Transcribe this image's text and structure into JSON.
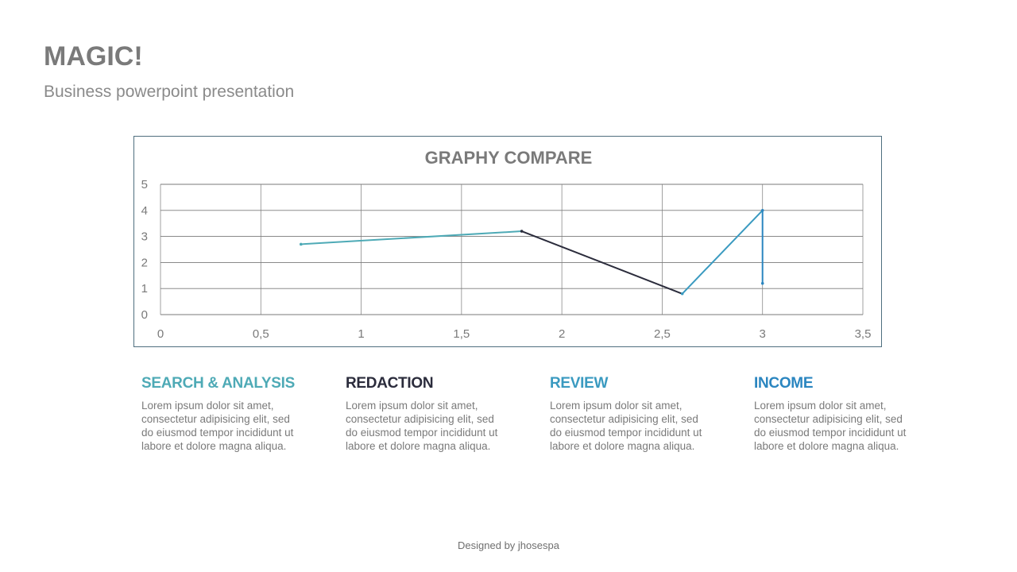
{
  "header": {
    "title": "MAGIC!",
    "subtitle": "Business powerpoint presentation"
  },
  "chart_data": {
    "type": "line",
    "title": "GRAPHY COMPARE",
    "xlabel": "",
    "ylabel": "",
    "xlim": [
      0,
      3.5
    ],
    "ylim": [
      0,
      5
    ],
    "x_ticks": [
      "0",
      "0,5",
      "1",
      "1,5",
      "2",
      "2,5",
      "3",
      "3,5"
    ],
    "y_ticks": [
      "0",
      "1",
      "2",
      "3",
      "4",
      "5"
    ],
    "grid": true,
    "x": [
      0.7,
      1.8,
      2.6,
      3.0,
      3.0
    ],
    "y": [
      2.7,
      3.2,
      0.8,
      4.0,
      1.2
    ],
    "segment_colors": [
      "#4eaab6",
      "#2b2c3c",
      "#3a9ac0",
      "#2b86c0"
    ]
  },
  "columns": [
    {
      "heading": "SEARCH & ANALYSIS",
      "color": "#4eaab6",
      "text": "Lorem ipsum dolor sit amet, consectetur adipisicing elit, sed do eiusmod tempor incididunt ut labore et dolore magna aliqua."
    },
    {
      "heading": "REDACTION",
      "color": "#2b2c3c",
      "text": "Lorem ipsum dolor sit amet, consectetur adipisicing elit, sed do eiusmod tempor incididunt ut labore et dolore magna aliqua."
    },
    {
      "heading": "REVIEW",
      "color": "#3a9ac0",
      "text": "Lorem ipsum dolor sit amet, consectetur adipisicing elit, sed do eiusmod tempor incididunt ut labore et dolore magna aliqua."
    },
    {
      "heading": "INCOME",
      "color": "#2b86c0",
      "text": "Lorem ipsum dolor sit amet, consectetur adipisicing elit, sed do eiusmod tempor incididunt ut labore et dolore magna aliqua."
    }
  ],
  "footer": {
    "credit": "Designed by jhosespa"
  }
}
